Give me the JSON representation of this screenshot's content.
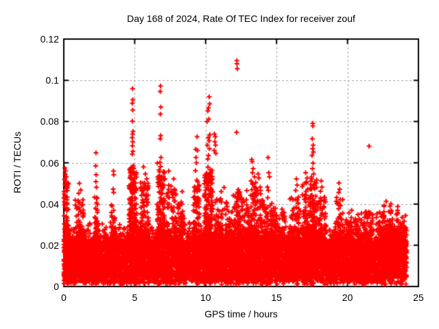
{
  "chart_data": {
    "type": "scatter",
    "title": "Day 168 of 2024, Rate Of TEC Index for receiver zouf",
    "xlabel": "GPS time / hours",
    "ylabel": "ROTI / TECUs",
    "xlim": [
      0,
      25
    ],
    "ylim": [
      0,
      0.12
    ],
    "x_ticks": [
      0,
      5,
      10,
      15,
      20,
      25
    ],
    "x_tick_labels": [
      "0",
      "5",
      "10",
      "15",
      "20",
      "25"
    ],
    "y_ticks": [
      0,
      0.02,
      0.04,
      0.06,
      0.08,
      0.1,
      0.12
    ],
    "y_tick_labels": [
      "0",
      "0.02",
      "0.04",
      "0.06",
      "0.08",
      "0.1",
      "0.12"
    ],
    "grid": {
      "on": true,
      "style": "dashed"
    },
    "legend": "none",
    "marker": "plus",
    "colors": {
      "marker": "#ff0000",
      "grid": "#a0a0a0",
      "border": "#000000",
      "background": "#ffffff",
      "text": "#000000"
    },
    "seed": 1337,
    "time_range_of_data": [
      0,
      24.17
    ],
    "outlier_points": [
      [
        0.07,
        0.0575
      ],
      [
        0.1,
        0.0545
      ],
      [
        0.13,
        0.056
      ],
      [
        0.08,
        0.052
      ],
      [
        0.15,
        0.051
      ],
      [
        0.18,
        0.0532
      ],
      [
        0.12,
        0.0492
      ],
      [
        0.2,
        0.0476
      ],
      [
        0.16,
        0.0465
      ],
      [
        0.25,
        0.048
      ],
      [
        1.1,
        0.05
      ],
      [
        1.2,
        0.0468
      ],
      [
        1.05,
        0.0452
      ],
      [
        2.27,
        0.0648
      ],
      [
        2.25,
        0.0585
      ],
      [
        2.28,
        0.0542
      ],
      [
        2.26,
        0.0509
      ],
      [
        2.3,
        0.0481
      ],
      [
        3.5,
        0.056
      ],
      [
        3.52,
        0.0542
      ],
      [
        3.48,
        0.0472
      ],
      [
        3.51,
        0.0456
      ],
      [
        4.85,
        0.096
      ],
      [
        4.87,
        0.0906
      ],
      [
        4.83,
        0.0888
      ],
      [
        4.86,
        0.0856
      ],
      [
        4.84,
        0.0802
      ],
      [
        4.88,
        0.0752
      ],
      [
        4.85,
        0.074
      ],
      [
        4.82,
        0.0722
      ],
      [
        4.86,
        0.0702
      ],
      [
        4.84,
        0.0682
      ],
      [
        4.87,
        0.0656
      ],
      [
        4.83,
        0.0642
      ],
      [
        4.9,
        0.0586
      ],
      [
        4.8,
        0.0578
      ],
      [
        5.0,
        0.055
      ],
      [
        4.95,
        0.0522
      ],
      [
        5.05,
        0.0502
      ],
      [
        4.75,
        0.0482
      ],
      [
        5.1,
        0.0466
      ],
      [
        5.62,
        0.058
      ],
      [
        5.75,
        0.0546
      ],
      [
        5.85,
        0.0522
      ],
      [
        5.7,
        0.0502
      ],
      [
        5.95,
        0.048
      ],
      [
        5.55,
        0.0462
      ],
      [
        6.82,
        0.0972
      ],
      [
        6.8,
        0.0946
      ],
      [
        6.84,
        0.087
      ],
      [
        6.81,
        0.0836
      ],
      [
        6.83,
        0.0732
      ],
      [
        6.8,
        0.0716
      ],
      [
        6.85,
        0.0626
      ],
      [
        6.78,
        0.0602
      ],
      [
        6.82,
        0.0582
      ],
      [
        6.75,
        0.0556
      ],
      [
        6.9,
        0.0532
      ],
      [
        6.7,
        0.0506
      ],
      [
        6.95,
        0.0482
      ],
      [
        7.4,
        0.056
      ],
      [
        7.75,
        0.0522
      ],
      [
        7.8,
        0.0472
      ],
      [
        7.35,
        0.0456
      ],
      [
        8.35,
        0.046
      ],
      [
        9.4,
        0.0726
      ],
      [
        9.3,
        0.0666
      ],
      [
        9.42,
        0.066
      ],
      [
        9.32,
        0.0626
      ],
      [
        9.35,
        0.06
      ],
      [
        9.28,
        0.0562
      ],
      [
        9.38,
        0.0516
      ],
      [
        9.25,
        0.0482
      ],
      [
        10.25,
        0.092
      ],
      [
        10.28,
        0.0886
      ],
      [
        10.2,
        0.0866
      ],
      [
        10.15,
        0.0852
      ],
      [
        10.22,
        0.0812
      ],
      [
        10.1,
        0.08
      ],
      [
        10.3,
        0.0736
      ],
      [
        10.18,
        0.0722
      ],
      [
        10.25,
        0.0706
      ],
      [
        10.12,
        0.0686
      ],
      [
        10.27,
        0.0668
      ],
      [
        10.2,
        0.0636
      ],
      [
        10.15,
        0.0618
      ],
      [
        10.32,
        0.0566
      ],
      [
        10.08,
        0.0546
      ],
      [
        10.35,
        0.0522
      ],
      [
        10.05,
        0.0502
      ],
      [
        10.62,
        0.074
      ],
      [
        10.68,
        0.0726
      ],
      [
        10.65,
        0.0702
      ],
      [
        10.7,
        0.0686
      ],
      [
        10.6,
        0.066
      ],
      [
        10.72,
        0.0646
      ],
      [
        11.3,
        0.048
      ],
      [
        11.1,
        0.046
      ],
      [
        12.2,
        0.1095
      ],
      [
        12.21,
        0.108
      ],
      [
        12.23,
        0.1056
      ],
      [
        12.18,
        0.0748
      ],
      [
        12.3,
        0.047
      ],
      [
        12.9,
        0.0465
      ],
      [
        13.25,
        0.0616
      ],
      [
        13.28,
        0.0606
      ],
      [
        13.35,
        0.0572
      ],
      [
        13.3,
        0.0552
      ],
      [
        13.45,
        0.0532
      ],
      [
        13.2,
        0.0512
      ],
      [
        13.7,
        0.0546
      ],
      [
        13.75,
        0.0526
      ],
      [
        13.85,
        0.0482
      ],
      [
        13.6,
        0.0466
      ],
      [
        14.4,
        0.0626
      ],
      [
        14.45,
        0.0552
      ],
      [
        14.5,
        0.0532
      ],
      [
        14.35,
        0.0482
      ],
      [
        14.42,
        0.0466
      ],
      [
        16.4,
        0.0522
      ],
      [
        16.45,
        0.0492
      ],
      [
        16.35,
        0.0466
      ],
      [
        17.05,
        0.0552
      ],
      [
        17.15,
        0.0526
      ],
      [
        17.1,
        0.0502
      ],
      [
        17.2,
        0.0472
      ],
      [
        17.55,
        0.0791
      ],
      [
        17.56,
        0.0779
      ],
      [
        17.52,
        0.0716
      ],
      [
        17.58,
        0.0686
      ],
      [
        17.54,
        0.0668
      ],
      [
        17.6,
        0.0652
      ],
      [
        17.5,
        0.0636
      ],
      [
        17.57,
        0.0598
      ],
      [
        17.53,
        0.0572
      ],
      [
        17.62,
        0.0546
      ],
      [
        17.48,
        0.0522
      ],
      [
        17.65,
        0.0496
      ],
      [
        17.45,
        0.0472
      ],
      [
        18.15,
        0.0512
      ],
      [
        18.2,
        0.0482
      ],
      [
        18.1,
        0.0462
      ],
      [
        19.4,
        0.0502
      ],
      [
        19.45,
        0.0472
      ],
      [
        19.38,
        0.0456
      ],
      [
        21.52,
        0.0681
      ]
    ],
    "spike_columns": [
      {
        "t": 0.15,
        "peak": 0.05,
        "halfwidth": 0.18,
        "n": 70
      },
      {
        "t": 1.1,
        "peak": 0.042,
        "halfwidth": 0.3,
        "n": 50
      },
      {
        "t": 2.3,
        "peak": 0.046,
        "halfwidth": 0.15,
        "n": 40
      },
      {
        "t": 3.5,
        "peak": 0.04,
        "halfwidth": 0.15,
        "n": 35
      },
      {
        "t": 4.9,
        "peak": 0.058,
        "halfwidth": 0.3,
        "n": 160
      },
      {
        "t": 5.7,
        "peak": 0.05,
        "halfwidth": 0.3,
        "n": 90
      },
      {
        "t": 6.85,
        "peak": 0.058,
        "halfwidth": 0.28,
        "n": 140
      },
      {
        "t": 7.6,
        "peak": 0.048,
        "halfwidth": 0.35,
        "n": 70
      },
      {
        "t": 8.3,
        "peak": 0.042,
        "halfwidth": 0.25,
        "n": 45
      },
      {
        "t": 9.35,
        "peak": 0.05,
        "halfwidth": 0.22,
        "n": 80
      },
      {
        "t": 10.2,
        "peak": 0.058,
        "halfwidth": 0.3,
        "n": 160
      },
      {
        "t": 10.9,
        "peak": 0.044,
        "halfwidth": 0.3,
        "n": 60
      },
      {
        "t": 11.6,
        "peak": 0.04,
        "halfwidth": 0.3,
        "n": 45
      },
      {
        "t": 12.2,
        "peak": 0.046,
        "halfwidth": 0.25,
        "n": 80
      },
      {
        "t": 12.8,
        "peak": 0.042,
        "halfwidth": 0.3,
        "n": 55
      },
      {
        "t": 13.4,
        "peak": 0.05,
        "halfwidth": 0.35,
        "n": 100
      },
      {
        "t": 14.1,
        "peak": 0.046,
        "halfwidth": 0.3,
        "n": 70
      },
      {
        "t": 14.8,
        "peak": 0.04,
        "halfwidth": 0.3,
        "n": 55
      },
      {
        "t": 15.3,
        "peak": 0.038,
        "halfwidth": 0.3,
        "n": 45
      },
      {
        "t": 16.3,
        "peak": 0.044,
        "halfwidth": 0.4,
        "n": 70
      },
      {
        "t": 17.1,
        "peak": 0.048,
        "halfwidth": 0.3,
        "n": 80
      },
      {
        "t": 17.6,
        "peak": 0.052,
        "halfwidth": 0.25,
        "n": 100
      },
      {
        "t": 18.2,
        "peak": 0.044,
        "halfwidth": 0.3,
        "n": 60
      },
      {
        "t": 19.4,
        "peak": 0.042,
        "halfwidth": 0.3,
        "n": 55
      },
      {
        "t": 20.0,
        "peak": 0.036,
        "halfwidth": 0.3,
        "n": 40
      },
      {
        "t": 20.8,
        "peak": 0.035,
        "halfwidth": 0.4,
        "n": 45
      },
      {
        "t": 21.5,
        "peak": 0.037,
        "halfwidth": 0.3,
        "n": 45
      },
      {
        "t": 22.3,
        "peak": 0.036,
        "halfwidth": 0.3,
        "n": 45
      },
      {
        "t": 22.8,
        "peak": 0.039,
        "halfwidth": 0.3,
        "n": 55
      },
      {
        "t": 23.3,
        "peak": 0.038,
        "halfwidth": 0.3,
        "n": 50
      },
      {
        "t": 23.9,
        "peak": 0.034,
        "halfwidth": 0.2,
        "n": 35
      }
    ],
    "baseline_band": {
      "n": 9500,
      "layers": [
        {
          "w": 0.78,
          "dist": "uniform",
          "y0": 0.0045,
          "dy": 0.0175
        },
        {
          "w": 0.12,
          "dist": "halfgauss",
          "y0": 0.02,
          "sigma": 0.0045
        },
        {
          "w": 0.07,
          "dist": "uniform",
          "y0": 0.0025,
          "dy": 0.0032
        },
        {
          "w": 0.03,
          "dist": "uniform",
          "y0": 0.001,
          "dy": 0.002
        }
      ]
    }
  }
}
